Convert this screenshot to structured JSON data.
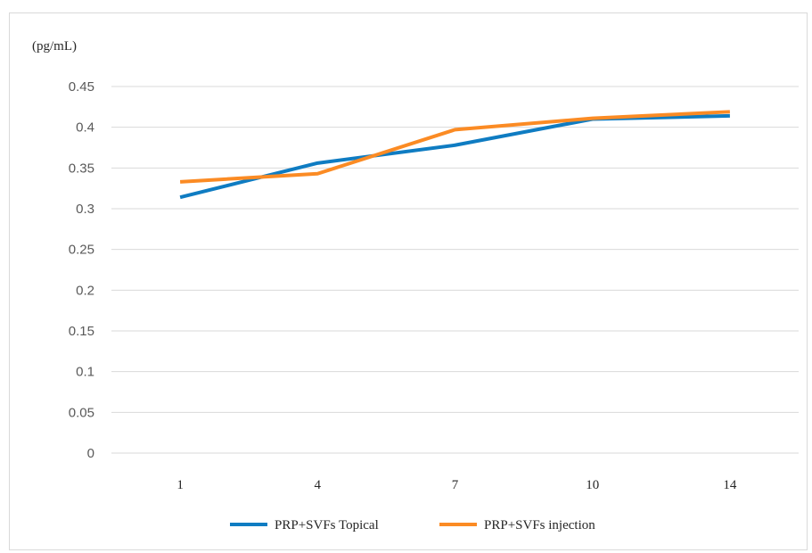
{
  "chart_data": {
    "type": "line",
    "unit_label": "(pg/mL)",
    "categories": [
      "1",
      "4",
      "7",
      "10",
      "14"
    ],
    "ylim": [
      0,
      0.45
    ],
    "yticks": [
      "0",
      "0.05",
      "0.1",
      "0.15",
      "0.2",
      "0.25",
      "0.3",
      "0.35",
      "0.4",
      "0.45"
    ],
    "grid": true,
    "legend_position": "bottom",
    "series": [
      {
        "name": "PRP+SVFs Topical",
        "color": "#0f7cc2",
        "values": [
          0.314,
          0.356,
          0.378,
          0.41,
          0.414
        ]
      },
      {
        "name": "PRP+SVFs injection",
        "color": "#fb8b24",
        "values": [
          0.333,
          0.343,
          0.397,
          0.411,
          0.419
        ]
      }
    ]
  }
}
